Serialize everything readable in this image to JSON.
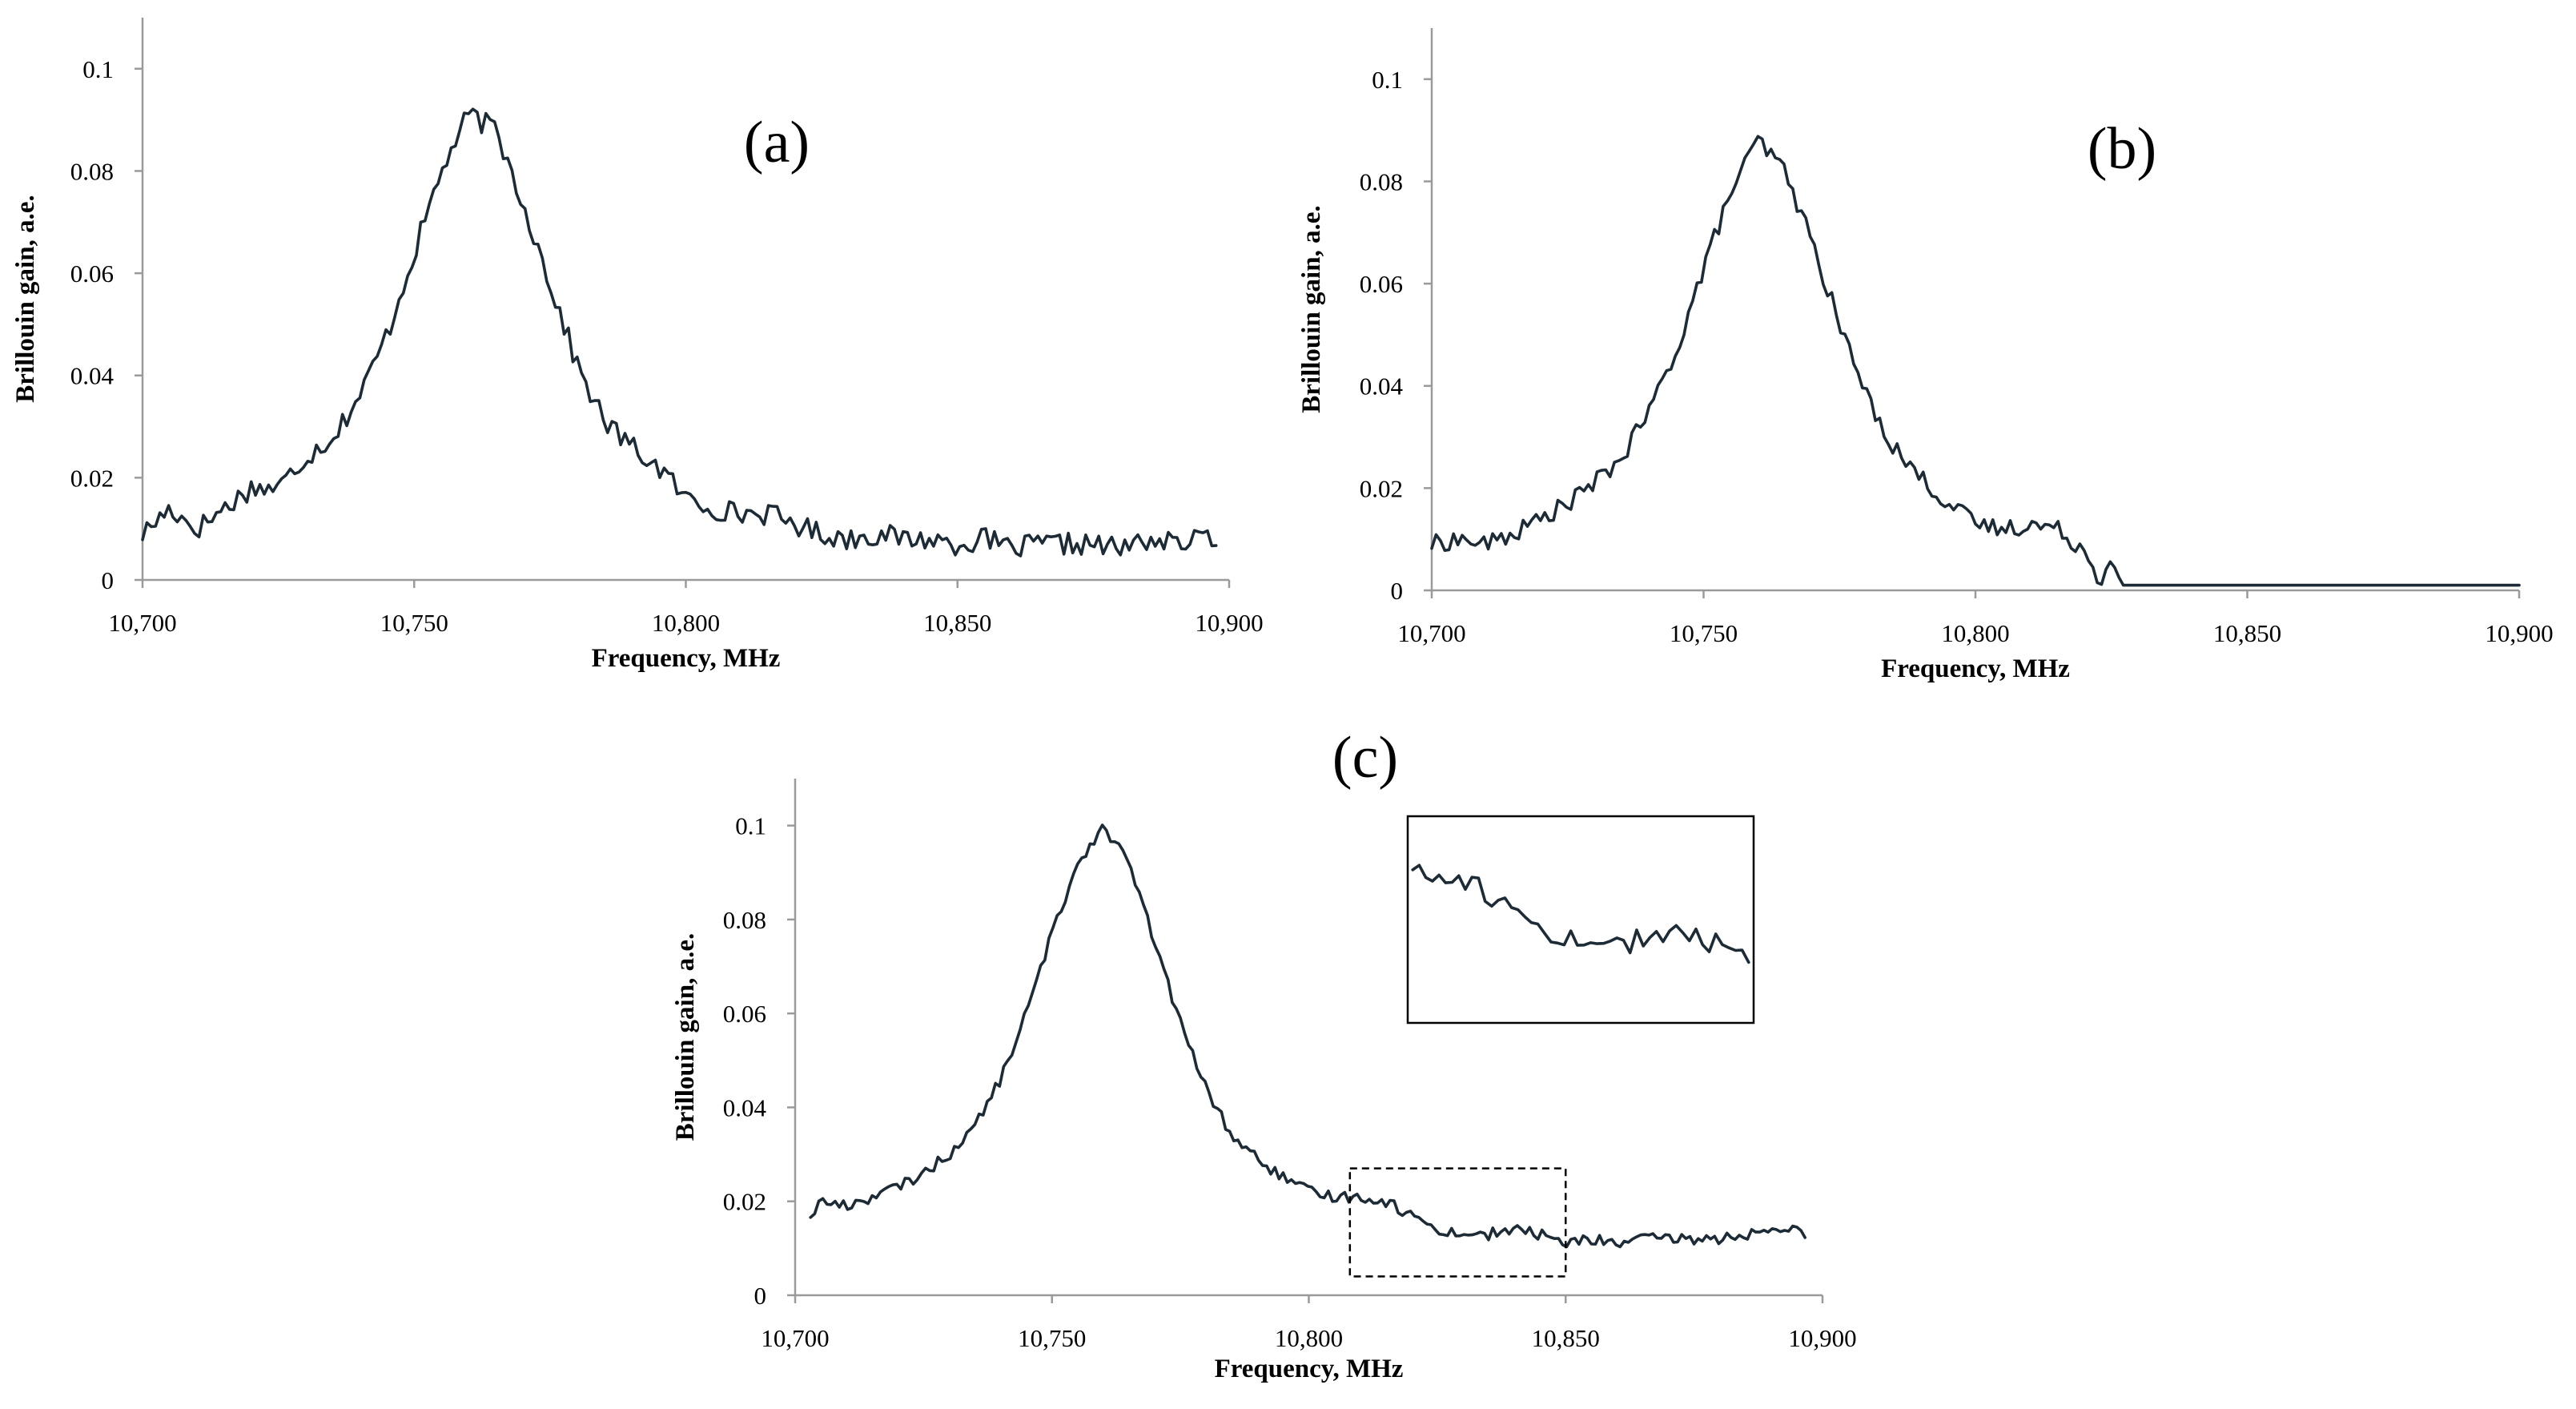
{
  "colors": {
    "line": "#1c2b36",
    "axis": "#9a9a9a",
    "box": "#000000"
  },
  "chart_data": [
    {
      "id": "a",
      "type": "line",
      "panel_label": "(a)",
      "xlabel": "Frequency, MHz",
      "ylabel": "Brillouin gain, a.e.",
      "xlim": [
        10700,
        10900
      ],
      "ylim": [
        0,
        0.11
      ],
      "xticks": [
        10700,
        10750,
        10800,
        10850,
        10900
      ],
      "xtick_labels": [
        "10,700",
        "10,750",
        "10,800",
        "10,850",
        "10,900"
      ],
      "yticks": [
        0,
        0.02,
        0.04,
        0.06,
        0.08,
        0.1
      ],
      "ytick_labels": [
        "0",
        "0.02",
        "0.04",
        "0.06",
        "0.08",
        "0.1"
      ],
      "x": [
        10700,
        10705,
        10710,
        10715,
        10720,
        10725,
        10730,
        10735,
        10740,
        10745,
        10750,
        10755,
        10760,
        10765,
        10770,
        10775,
        10780,
        10785,
        10790,
        10795,
        10800,
        10805,
        10810,
        10815,
        10820,
        10825,
        10830,
        10835,
        10840,
        10845,
        10850,
        10855,
        10860,
        10865,
        10870,
        10875,
        10880,
        10885,
        10890,
        10895,
        10898
      ],
      "values": [
        0.009,
        0.014,
        0.01,
        0.014,
        0.018,
        0.018,
        0.024,
        0.028,
        0.036,
        0.048,
        0.064,
        0.08,
        0.091,
        0.088,
        0.074,
        0.058,
        0.042,
        0.031,
        0.026,
        0.022,
        0.016,
        0.014,
        0.013,
        0.013,
        0.011,
        0.009,
        0.008,
        0.009,
        0.008,
        0.008,
        0.007,
        0.008,
        0.006,
        0.007,
        0.007,
        0.007,
        0.006,
        0.008,
        0.007,
        0.008,
        0.009
      ],
      "noise": 0.0022
    },
    {
      "id": "b",
      "type": "line",
      "panel_label": "(b)",
      "xlabel": "Frequency, MHz",
      "ylabel": "Brillouin gain, a.e.",
      "xlim": [
        10700,
        10900
      ],
      "ylim": [
        0,
        0.11
      ],
      "xticks": [
        10700,
        10750,
        10800,
        10850,
        10900
      ],
      "xtick_labels": [
        "10,700",
        "10,750",
        "10,800",
        "10,850",
        "10,900"
      ],
      "yticks": [
        0,
        0.02,
        0.04,
        0.06,
        0.08,
        0.1
      ],
      "ytick_labels": [
        "0",
        "0.02",
        "0.04",
        "0.06",
        "0.08",
        "0.1"
      ],
      "x": [
        10700,
        10705,
        10710,
        10715,
        10720,
        10725,
        10730,
        10735,
        10740,
        10745,
        10750,
        10755,
        10760,
        10765,
        10770,
        10775,
        10780,
        10785,
        10790,
        10795,
        10800,
        10805,
        10810,
        10815,
        10820,
        10823,
        10825,
        10827,
        10900
      ],
      "values": [
        0.009,
        0.01,
        0.009,
        0.011,
        0.014,
        0.017,
        0.021,
        0.026,
        0.035,
        0.047,
        0.063,
        0.078,
        0.088,
        0.082,
        0.068,
        0.052,
        0.038,
        0.028,
        0.022,
        0.017,
        0.013,
        0.012,
        0.013,
        0.012,
        0.008,
        0.002,
        0.006,
        0.001,
        0.001
      ],
      "noise": 0.0018,
      "noise_until": 10824
    },
    {
      "id": "c",
      "type": "line",
      "panel_label": "(c)",
      "xlabel": "Frequency, MHz",
      "ylabel": "Brillouin gain, a.e.",
      "xlim": [
        10700,
        10900
      ],
      "ylim": [
        0,
        0.11
      ],
      "xticks": [
        10700,
        10750,
        10800,
        10850,
        10900
      ],
      "xtick_labels": [
        "10,700",
        "10,750",
        "10,800",
        "10,850",
        "10,900"
      ],
      "yticks": [
        0,
        0.02,
        0.04,
        0.06,
        0.08,
        0.1
      ],
      "ytick_labels": [
        "0",
        "0.02",
        "0.04",
        "0.06",
        "0.08",
        "0.1"
      ],
      "x": [
        10703,
        10705,
        10710,
        10715,
        10720,
        10725,
        10730,
        10735,
        10740,
        10745,
        10750,
        10755,
        10760,
        10765,
        10770,
        10775,
        10780,
        10785,
        10790,
        10795,
        10800,
        10805,
        10810,
        10815,
        10820,
        10825,
        10830,
        10835,
        10840,
        10845,
        10850,
        10855,
        10860,
        10865,
        10870,
        10875,
        10880,
        10885,
        10890,
        10895,
        10897
      ],
      "values": [
        0.017,
        0.02,
        0.019,
        0.021,
        0.023,
        0.026,
        0.03,
        0.036,
        0.046,
        0.06,
        0.077,
        0.092,
        0.1,
        0.092,
        0.075,
        0.058,
        0.044,
        0.034,
        0.029,
        0.025,
        0.022,
        0.021,
        0.021,
        0.02,
        0.017,
        0.014,
        0.013,
        0.013,
        0.014,
        0.013,
        0.011,
        0.012,
        0.011,
        0.012,
        0.012,
        0.012,
        0.012,
        0.013,
        0.013,
        0.014,
        0.013
      ],
      "noise": 0.0012,
      "zoom_range": {
        "x": [
          10808,
          10850
        ],
        "y": [
          0.004,
          0.027
        ]
      }
    }
  ]
}
